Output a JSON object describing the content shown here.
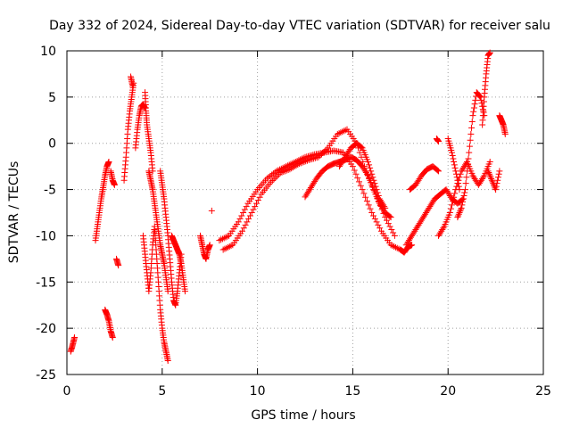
{
  "chart_data": {
    "type": "scatter",
    "title": "Day 332 of 2024, Sidereal Day-to-day VTEC variation (SDTVAR) for receiver salu",
    "xlabel": "GPS time / hours",
    "ylabel": "SDTVAR / TECUs",
    "xlim": [
      0,
      25
    ],
    "ylim": [
      -25,
      10
    ],
    "xticks": [
      0,
      5,
      10,
      15,
      20,
      25
    ],
    "yticks": [
      -25,
      -20,
      -15,
      -10,
      -5,
      0,
      5,
      10
    ],
    "grid": true,
    "marker": "+",
    "color": "#ff0000",
    "series": [
      {
        "name": "s01",
        "x": [
          0.2,
          0.3,
          0.4
        ],
        "y": [
          -22.5,
          -21.8,
          -21.0
        ]
      },
      {
        "name": "s02",
        "x": [
          1.5,
          1.6,
          1.7,
          1.8,
          1.9,
          2.0,
          2.1,
          2.2
        ],
        "y": [
          -10.5,
          -9.0,
          -7.5,
          -6.0,
          -4.8,
          -3.5,
          -2.5,
          -2.0
        ]
      },
      {
        "name": "s03",
        "x": [
          2.0,
          2.1,
          2.2,
          2.3,
          2.4
        ],
        "y": [
          -18.0,
          -18.5,
          -19.2,
          -20.3,
          -21.0
        ]
      },
      {
        "name": "s04",
        "x": [
          2.3,
          2.4,
          2.5
        ],
        "y": [
          -3.0,
          -4.0,
          -4.5
        ]
      },
      {
        "name": "s05",
        "x": [
          2.6,
          2.7
        ],
        "y": [
          -12.5,
          -13.2
        ]
      },
      {
        "name": "s06",
        "x": [
          3.0,
          3.1,
          3.2,
          3.3,
          3.4,
          3.5
        ],
        "y": [
          -4.0,
          -1.5,
          1.5,
          3.5,
          5.0,
          6.5
        ]
      },
      {
        "name": "s07",
        "x": [
          3.35,
          3.45
        ],
        "y": [
          7.2,
          6.2
        ]
      },
      {
        "name": "s08",
        "x": [
          3.6,
          3.7,
          3.8,
          3.9,
          4.0,
          4.1
        ],
        "y": [
          -0.5,
          1.5,
          3.0,
          4.0,
          4.2,
          3.8
        ]
      },
      {
        "name": "s09",
        "x": [
          4.1,
          4.15,
          4.2,
          4.3,
          4.4,
          4.5
        ],
        "y": [
          5.5,
          3.5,
          2.0,
          0.5,
          -1.0,
          -3.0
        ]
      },
      {
        "name": "s10",
        "x": [
          4.0,
          4.1,
          4.2,
          4.3,
          4.4,
          4.5,
          4.6,
          4.7,
          4.8,
          4.9,
          5.0,
          5.1,
          5.2,
          5.3
        ],
        "y": [
          -10.0,
          -12.0,
          -14.0,
          -16.0,
          -14.0,
          -11.0,
          -9.0,
          -12.0,
          -15.0,
          -18.0,
          -20.0,
          -21.5,
          -22.5,
          -23.5
        ]
      },
      {
        "name": "s11",
        "x": [
          4.3,
          4.4,
          4.5,
          4.6,
          4.7,
          4.8,
          4.9,
          5.0,
          5.1,
          5.2,
          5.3
        ],
        "y": [
          -3.0,
          -4.0,
          -5.0,
          -6.5,
          -8.0,
          -9.5,
          -11.0,
          -12.0,
          -13.0,
          -14.5,
          -16.0
        ]
      },
      {
        "name": "s12",
        "x": [
          4.9,
          5.0,
          5.1,
          5.2,
          5.3,
          5.4,
          5.5,
          5.6,
          5.7,
          5.8,
          5.9,
          6.0
        ],
        "y": [
          -3.0,
          -4.5,
          -6.0,
          -8.0,
          -10.0,
          -12.5,
          -15.0,
          -17.0,
          -17.5,
          -16.0,
          -14.0,
          -12.0
        ]
      },
      {
        "name": "s13",
        "x": [
          5.5,
          5.6,
          5.7,
          5.8,
          5.9,
          6.0,
          6.1,
          6.2
        ],
        "y": [
          -10.0,
          -10.5,
          -11.0,
          -11.5,
          -12.0,
          -13.0,
          -14.5,
          -16.0
        ]
      },
      {
        "name": "s14",
        "x": [
          7.0,
          7.1,
          7.2,
          7.3,
          7.4,
          7.5
        ],
        "y": [
          -10.0,
          -11.0,
          -12.0,
          -12.5,
          -11.5,
          -11.0
        ]
      },
      {
        "name": "s15",
        "x": [
          7.6
        ],
        "y": [
          -7.3
        ]
      },
      {
        "name": "s16",
        "x": [
          8.0,
          8.5,
          9.0,
          9.5,
          10.0,
          10.5,
          11.0,
          11.5,
          12.0,
          12.5,
          13.0,
          13.5,
          14.0,
          14.5,
          15.0,
          15.5,
          16.0,
          16.5,
          17.0,
          17.5
        ],
        "y": [
          -10.5,
          -10.0,
          -8.5,
          -6.5,
          -5.0,
          -3.8,
          -3.0,
          -2.5,
          -2.0,
          -1.5,
          -1.2,
          -1.0,
          -0.8,
          -1.0,
          -2.5,
          -5.0,
          -7.5,
          -9.5,
          -11.0,
          -11.5
        ]
      },
      {
        "name": "s17",
        "x": [
          8.2,
          8.7,
          9.2,
          9.7,
          10.2,
          10.7,
          11.2,
          11.7,
          12.2,
          12.7,
          13.2,
          13.7,
          14.2,
          14.7,
          15.2,
          15.7,
          16.2,
          16.7,
          17.2
        ],
        "y": [
          -11.5,
          -11.0,
          -9.5,
          -7.5,
          -5.5,
          -4.2,
          -3.2,
          -2.8,
          -2.2,
          -1.8,
          -1.5,
          -0.5,
          1.0,
          1.5,
          0.0,
          -3.0,
          -5.5,
          -8.0,
          -10.0
        ]
      },
      {
        "name": "s18",
        "x": [
          12.5,
          12.8,
          13.1,
          13.4,
          13.7,
          14.0,
          14.3,
          14.6,
          14.9,
          15.2,
          15.5,
          15.8,
          16.1,
          16.4,
          16.7,
          17.0
        ],
        "y": [
          -5.8,
          -4.8,
          -3.8,
          -3.0,
          -2.5,
          -2.2,
          -2.0,
          -1.8,
          -1.5,
          -1.8,
          -2.5,
          -3.5,
          -5.0,
          -6.5,
          -7.5,
          -8.0
        ]
      },
      {
        "name": "s19",
        "x": [
          14.3,
          14.6,
          14.9,
          15.2,
          15.5,
          15.8,
          16.1,
          16.4,
          16.7
        ],
        "y": [
          -2.5,
          -1.5,
          -0.5,
          0.0,
          -0.5,
          -2.0,
          -4.0,
          -6.0,
          -7.0
        ]
      },
      {
        "name": "s20",
        "x": [
          17.5,
          17.7,
          17.9,
          18.1
        ],
        "y": [
          -11.5,
          -11.8,
          -11.2,
          -11.0
        ]
      },
      {
        "name": "s21",
        "x": [
          17.8,
          18.1,
          18.4,
          18.7,
          19.0,
          19.3,
          19.6,
          19.9,
          20.2,
          20.5,
          20.8
        ],
        "y": [
          -11.0,
          -10.0,
          -9.0,
          -8.0,
          -7.0,
          -6.0,
          -5.5,
          -5.0,
          -6.0,
          -6.5,
          -6.0
        ]
      },
      {
        "name": "s22",
        "x": [
          18.0,
          18.3,
          18.6,
          18.9,
          19.2,
          19.5
        ],
        "y": [
          -5.0,
          -4.5,
          -3.5,
          -2.8,
          -2.5,
          -3.0
        ]
      },
      {
        "name": "s23",
        "x": [
          19.4,
          19.5
        ],
        "y": [
          0.5,
          0.2
        ]
      },
      {
        "name": "s24",
        "x": [
          19.5,
          19.8,
          20.1,
          20.4,
          20.7,
          21.0,
          21.3,
          21.6,
          21.9,
          22.2
        ],
        "y": [
          -10.0,
          -9.0,
          -7.5,
          -5.0,
          -3.0,
          -2.0,
          -3.5,
          -4.5,
          -3.5,
          -2.0
        ]
      },
      {
        "name": "s25",
        "x": [
          20.0,
          20.2,
          20.4,
          20.6
        ],
        "y": [
          0.5,
          -1.0,
          -3.0,
          -5.0
        ]
      },
      {
        "name": "s26",
        "x": [
          20.5,
          20.7,
          20.9,
          21.1,
          21.3,
          21.5,
          21.7,
          21.9
        ],
        "y": [
          -8.0,
          -7.0,
          -5.0,
          -1.0,
          3.0,
          5.5,
          5.0,
          3.0
        ]
      },
      {
        "name": "s27",
        "x": [
          21.8,
          21.9,
          22.0,
          22.1,
          22.2
        ],
        "y": [
          2.0,
          5.0,
          7.5,
          9.5,
          9.8
        ]
      },
      {
        "name": "s28",
        "x": [
          22.1,
          22.3,
          22.5,
          22.7
        ],
        "y": [
          -3.0,
          -4.0,
          -5.0,
          -3.0
        ]
      },
      {
        "name": "s29",
        "x": [
          22.7,
          22.8,
          22.9,
          23.0
        ],
        "y": [
          3.0,
          2.5,
          2.0,
          1.0
        ]
      }
    ]
  }
}
